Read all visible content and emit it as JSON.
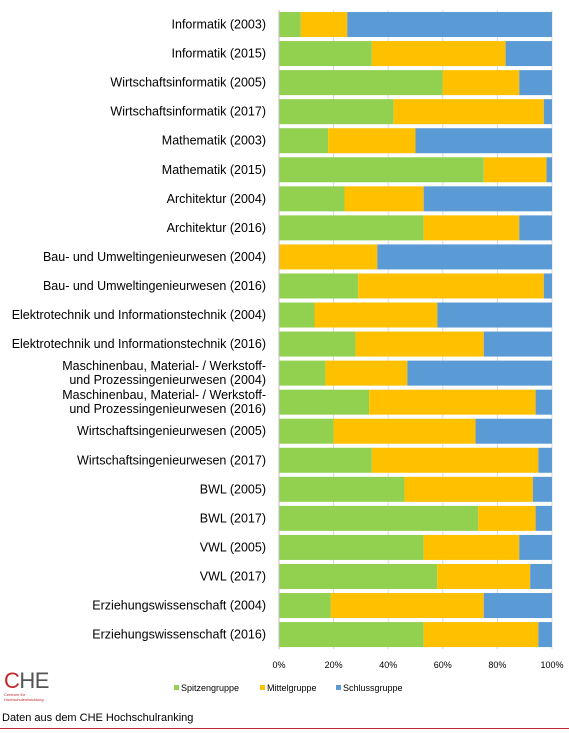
{
  "colors": {
    "Spitzengruppe": "#92d050",
    "Mittelgruppe": "#ffc000",
    "Schlussgruppe": "#5b9bd5"
  },
  "logo": {
    "initial": "C",
    "rest": "HE",
    "subtitle": "Centrum für Hochschulentwicklung"
  },
  "footer": {
    "note": "Daten aus dem CHE Hochschulranking"
  },
  "chart_data": {
    "type": "bar",
    "orientation": "horizontal",
    "stacked": "percent",
    "categories": [
      "Informatik (2003)",
      "Informatik (2015)",
      "Wirtschaftsinformatik (2005)",
      "Wirtschaftsinformatik (2017)",
      "Mathematik (2003)",
      "Mathematik (2015)",
      "Architektur (2004)",
      "Architektur (2016)",
      "Bau- und Umweltingenieurwesen (2004)",
      "Bau- und Umweltingenieurwesen (2016)",
      "Elektrotechnik und Informationstechnik (2004)",
      "Elektrotechnik und Informationstechnik (2016)",
      [
        "Maschinenbau, Material- / Werkstoff-",
        "und Prozessingenieurwesen (2004)"
      ],
      [
        "Maschinenbau, Material- / Werkstoff-",
        "und Prozessingenieurwesen (2016)"
      ],
      "Wirtschaftsingenieurwesen (2005)",
      "Wirtschaftsingenieurwesen (2017)",
      "BWL (2005)",
      "BWL (2017)",
      "VWL (2005)",
      "VWL (2017)",
      "Erziehungswissenschaft (2004)",
      "Erziehungswissenschaft (2016)"
    ],
    "series": [
      {
        "name": "Spitzengruppe",
        "values": [
          8,
          34,
          60,
          42,
          18,
          75,
          24,
          53,
          0,
          29,
          13,
          28,
          17,
          33,
          20,
          34,
          46,
          73,
          53,
          58,
          19,
          53
        ]
      },
      {
        "name": "Mittelgruppe",
        "values": [
          17,
          49,
          28,
          55,
          32,
          23,
          29,
          35,
          36,
          68,
          45,
          47,
          30,
          61,
          52,
          61,
          47,
          21,
          35,
          34,
          56,
          42
        ]
      },
      {
        "name": "Schlussgruppe",
        "values": [
          75,
          17,
          12,
          3,
          50,
          2,
          47,
          12,
          64,
          3,
          42,
          25,
          53,
          6,
          28,
          5,
          7,
          6,
          12,
          8,
          25,
          5
        ]
      }
    ],
    "xticks": [
      "0%",
      "20%",
      "40%",
      "60%",
      "80%",
      "100%"
    ],
    "xlim": [
      0,
      100
    ],
    "grid": true,
    "legend": "bottom"
  }
}
